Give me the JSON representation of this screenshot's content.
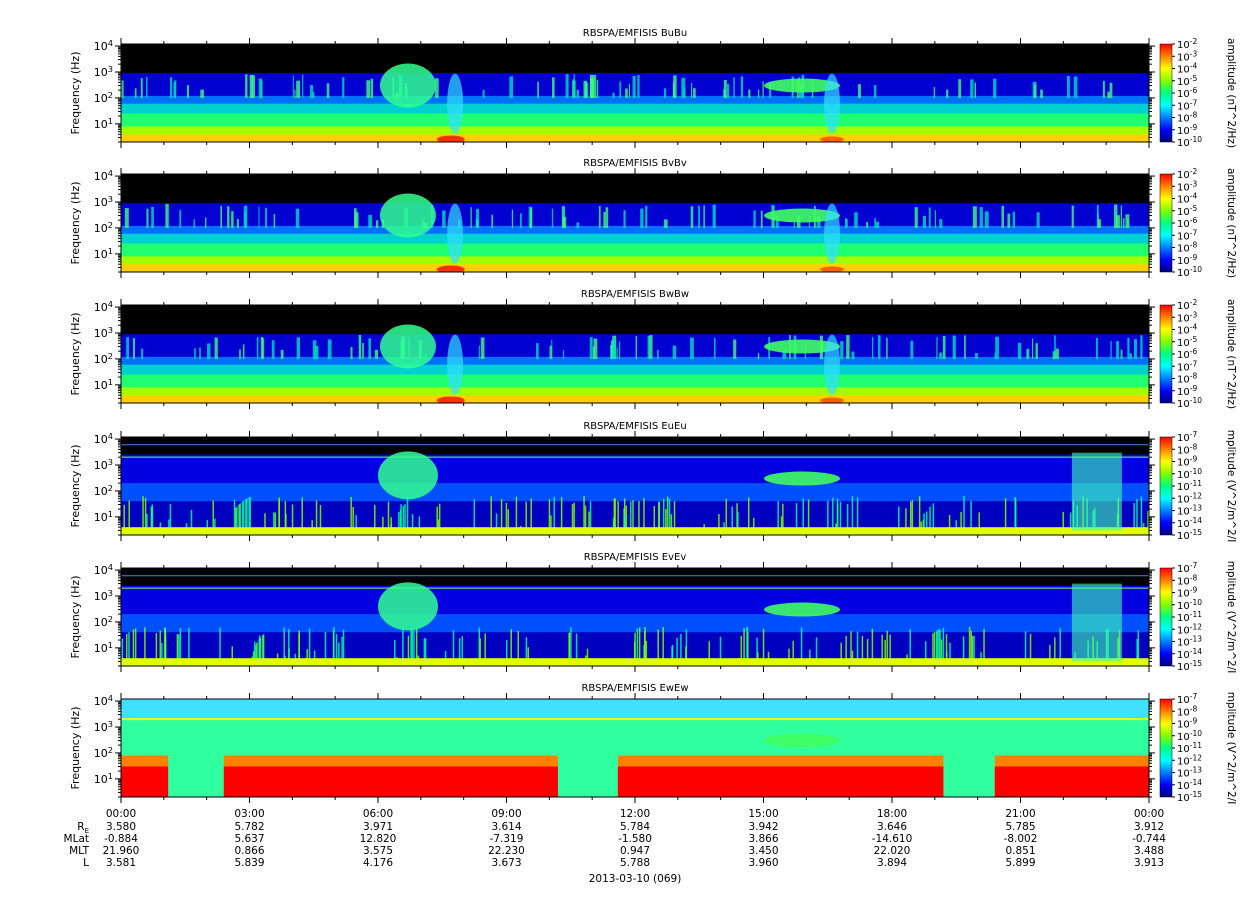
{
  "chart_data": {
    "type": "heatmap",
    "date_label": "2013-03-10 (069)",
    "x_ticks": [
      "00:00",
      "03:00",
      "06:00",
      "09:00",
      "12:00",
      "15:00",
      "18:00",
      "21:00",
      "00:00"
    ],
    "x_range_hours": [
      0,
      24
    ],
    "ylabel": "Frequency (Hz)",
    "ylim_hz": [
      2,
      12000
    ],
    "y_scale": "log",
    "y_ticks": [
      "10^1",
      "10^2",
      "10^3",
      "10^4"
    ],
    "ephemeris": [
      {
        "label": "RE",
        "values": [
          "3.580",
          "5.782",
          "3.971",
          "3.614",
          "5.784",
          "3.942",
          "3.646",
          "5.785",
          "3.912"
        ]
      },
      {
        "label": "MLat",
        "values": [
          "-0.884",
          "5.637",
          "12.820",
          "-7.319",
          "-1.580",
          "3.866",
          "-14.610",
          "-8.002",
          "-0.744"
        ]
      },
      {
        "label": "MLT",
        "values": [
          "21.960",
          "0.866",
          "3.575",
          "22.230",
          "0.947",
          "3.450",
          "22.020",
          "0.851",
          "3.488"
        ]
      },
      {
        "label": "L",
        "values": [
          "3.581",
          "5.839",
          "4.176",
          "3.673",
          "5.788",
          "3.960",
          "3.894",
          "5.899",
          "3.913"
        ]
      }
    ],
    "panels": [
      {
        "title": "RBSPA/EMFISIS  BuBu",
        "kind": "B",
        "colorbar_label": "amplitude (nT^2/Hz)",
        "colorbar_ticks": [
          "10^-2",
          "10^-3",
          "10^-4",
          "10^-5",
          "10^-6",
          "10^-7",
          "10^-8",
          "10^-9",
          "10^-10"
        ]
      },
      {
        "title": "RBSPA/EMFISIS  BvBv",
        "kind": "B",
        "colorbar_label": "amplitude (nT^2/Hz)",
        "colorbar_ticks": [
          "10^-2",
          "10^-3",
          "10^-4",
          "10^-5",
          "10^-6",
          "10^-7",
          "10^-8",
          "10^-9",
          "10^-10"
        ]
      },
      {
        "title": "RBSPA/EMFISIS  BwBw",
        "kind": "B",
        "colorbar_label": "amplitude (nT^2/Hz)",
        "colorbar_ticks": [
          "10^-2",
          "10^-3",
          "10^-4",
          "10^-5",
          "10^-6",
          "10^-7",
          "10^-8",
          "10^-9",
          "10^-10"
        ]
      },
      {
        "title": "RBSPA/EMFISIS  EuEu",
        "kind": "E",
        "colorbar_label": "mplitude (V^2/m^2/I",
        "colorbar_ticks": [
          "10^-7",
          "10^-8",
          "10^-9",
          "10^-10",
          "10^-11",
          "10^-12",
          "10^-13",
          "10^-14",
          "10^-15"
        ]
      },
      {
        "title": "RBSPA/EMFISIS  EvEv",
        "kind": "E",
        "colorbar_label": "mplitude (V^2/m^2/I",
        "colorbar_ticks": [
          "10^-7",
          "10^-8",
          "10^-9",
          "10^-10",
          "10^-11",
          "10^-12",
          "10^-13",
          "10^-14",
          "10^-15"
        ]
      },
      {
        "title": "RBSPA/EMFISIS  EwEw",
        "kind": "Ew",
        "colorbar_label": "mplitude (V^2/m^2/I",
        "colorbar_ticks": [
          "10^-7",
          "10^-8",
          "10^-9",
          "10^-10",
          "10^-11",
          "10^-12",
          "10^-13",
          "10^-14",
          "10^-15"
        ]
      }
    ],
    "colormap": [
      "#000080",
      "#0000ff",
      "#0080ff",
      "#00ffff",
      "#00ff80",
      "#80ff00",
      "#ffff00",
      "#ff8000",
      "#ff0000"
    ]
  }
}
